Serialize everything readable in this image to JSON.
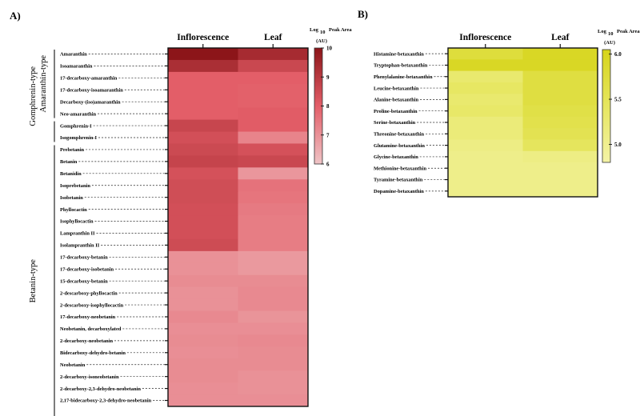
{
  "chart_data": [
    {
      "type": "heatmap",
      "panel_label": "A)",
      "columns": [
        "Inflorescence",
        "Leaf"
      ],
      "colorbar": {
        "title_line1": "Log",
        "title_sub": "10",
        "title_line2": "Peak Area",
        "title_line3": "(AU)",
        "range": [
          6,
          10
        ],
        "ticks": [
          "10",
          "9",
          "8",
          "7",
          "6"
        ],
        "tick_values": [
          10,
          9,
          8,
          7,
          6
        ],
        "color_low": "#efc4c6",
        "color_mid": "#e35e68",
        "color_high": "#8c1519"
      },
      "groups": [
        {
          "name": "Amaranthin-type",
          "start": 0,
          "end": 5
        },
        {
          "name": "Gomphrenin-type",
          "start": 6,
          "end": 7
        },
        {
          "name": "Betanin-type",
          "start": 8,
          "end": 30
        }
      ],
      "rows": [
        {
          "label": "Amaranthin",
          "values": [
            10.0,
            9.4
          ]
        },
        {
          "label": "Isoamaranthin",
          "values": [
            9.3,
            8.6
          ]
        },
        {
          "label": "17-decarboxy-amaranthin",
          "values": [
            8.0,
            8.0
          ]
        },
        {
          "label": "17-decarboxy-isoamaranthin",
          "values": [
            8.0,
            7.95
          ]
        },
        {
          "label": "Decarboxy-(iso)amaranthin",
          "values": [
            8.0,
            7.95
          ]
        },
        {
          "label": "Neo-amaranthin",
          "values": [
            8.0,
            8.05
          ]
        },
        {
          "label": "Gomphrenin-I",
          "values": [
            8.65,
            8.05
          ]
        },
        {
          "label": "Isogomphrenin-I",
          "values": [
            8.4,
            7.25
          ]
        },
        {
          "label": "Prebetanin",
          "values": [
            8.55,
            8.35
          ]
        },
        {
          "label": "Betanin",
          "values": [
            8.7,
            8.6
          ]
        },
        {
          "label": "Betanidin",
          "values": [
            8.35,
            6.9
          ]
        },
        {
          "label": "Isoprebetanin",
          "values": [
            8.45,
            7.6
          ]
        },
        {
          "label": "Isobetanin",
          "values": [
            8.45,
            7.55
          ]
        },
        {
          "label": "Phyllocactin",
          "values": [
            8.4,
            7.45
          ]
        },
        {
          "label": "Isophyllocactin",
          "values": [
            8.4,
            7.4
          ]
        },
        {
          "label": "Lampranthin II",
          "values": [
            8.4,
            7.4
          ]
        },
        {
          "label": "Isolampranthin II",
          "values": [
            8.5,
            7.4
          ]
        },
        {
          "label": "17-decarboxy-betanin",
          "values": [
            7.0,
            6.85
          ]
        },
        {
          "label": "17-decarboxy-isobetanin",
          "values": [
            7.0,
            6.85
          ]
        },
        {
          "label": "15-decarboxy-betanin",
          "values": [
            7.1,
            7.1
          ]
        },
        {
          "label": "2-descarboxy-phyllocactin",
          "values": [
            7.0,
            7.15
          ]
        },
        {
          "label": "2-descarboxy-isophyllocactin",
          "values": [
            7.0,
            7.15
          ]
        },
        {
          "label": "17-decarboxy-neobetanin",
          "values": [
            7.15,
            6.95
          ]
        },
        {
          "label": "Neobetanin, decarboxylated",
          "values": [
            7.05,
            7.05
          ]
        },
        {
          "label": "2-decarboxy-neobetanin",
          "values": [
            7.1,
            7.15
          ]
        },
        {
          "label": "Bidecarboxy-dehydro-betanin",
          "values": [
            7.05,
            7.1
          ]
        },
        {
          "label": "Neobetanin",
          "values": [
            7.1,
            7.1
          ]
        },
        {
          "label": "2-decarboxy-isoneobetanin",
          "values": [
            7.1,
            7.0
          ]
        },
        {
          "label": "2-decarboxy-2,3-dehydro-neobetanin",
          "values": [
            7.05,
            7.0
          ]
        },
        {
          "label": "2,17-bidecarboxy-2,3-dehydro-neobetanin",
          "values": [
            7.05,
            7.05
          ]
        }
      ]
    },
    {
      "type": "heatmap",
      "panel_label": "B)",
      "columns": [
        "Inflorescence",
        "Leaf"
      ],
      "colorbar": {
        "title_line1": "Log",
        "title_sub": "10",
        "title_line2": "Peak Area",
        "title_line3": "(AU)",
        "range": [
          4.8,
          6.05
        ],
        "ticks": [
          "6.0",
          "5.5",
          "5.0"
        ],
        "tick_values": [
          6.0,
          5.5,
          5.0
        ],
        "color_low": "#f4f3a6",
        "color_mid": "#e6e660",
        "color_high": "#d6d41a"
      },
      "rows": [
        {
          "label": "Histamine-betaxanthin",
          "values": [
            5.75,
            5.95
          ]
        },
        {
          "label": "Tryptophan-betaxanthin",
          "values": [
            5.95,
            5.95
          ]
        },
        {
          "label": "Phenylalanine-betaxanthin",
          "values": [
            5.3,
            5.7
          ]
        },
        {
          "label": "Leucine-betaxanthin",
          "values": [
            5.4,
            5.7
          ]
        },
        {
          "label": "Alanine-betaxanthin",
          "values": [
            5.3,
            5.7
          ]
        },
        {
          "label": "Proline-betaxanthin",
          "values": [
            5.35,
            5.65
          ]
        },
        {
          "label": "Serine-betaxanthin",
          "values": [
            5.2,
            5.6
          ]
        },
        {
          "label": "Threonine-betaxanthin",
          "values": [
            5.2,
            5.55
          ]
        },
        {
          "label": "Glutamine-betaxanthin",
          "values": [
            5.1,
            5.45
          ]
        },
        {
          "label": "Glycine-betaxanthin",
          "values": [
            5.05,
            5.1
          ]
        },
        {
          "label": "Methionine-betaxanthin",
          "values": [
            5.05,
            5.05
          ]
        },
        {
          "label": "Tyramine-betaxanthin",
          "values": [
            5.05,
            5.05
          ]
        },
        {
          "label": "Dopamine-betaxanthin",
          "values": [
            5.05,
            5.05
          ]
        }
      ]
    }
  ]
}
